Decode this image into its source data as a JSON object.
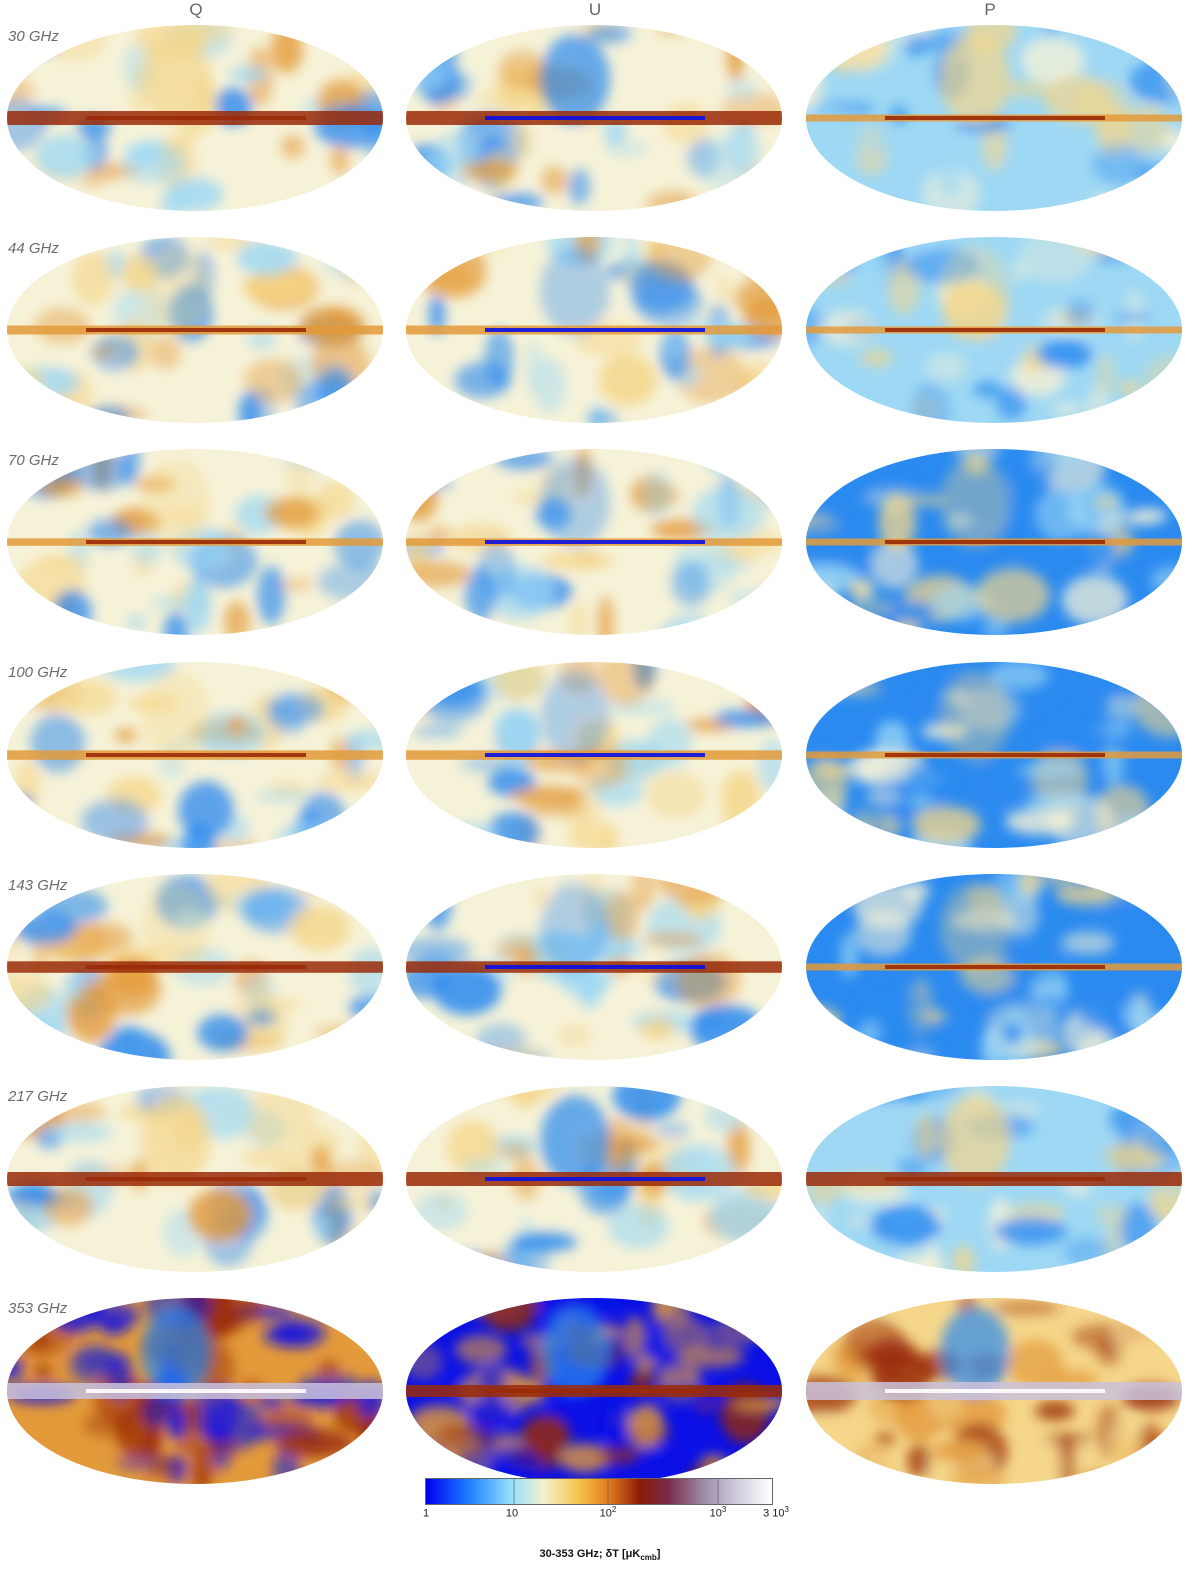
{
  "columns": [
    "Q",
    "U",
    "P"
  ],
  "rows": [
    {
      "freq": "30 GHz"
    },
    {
      "freq": "44 GHz"
    },
    {
      "freq": "70 GHz"
    },
    {
      "freq": "100 GHz"
    },
    {
      "freq": "143 GHz"
    },
    {
      "freq": "217 GHz"
    },
    {
      "freq": "353 GHz"
    }
  ],
  "colorbar": {
    "ticks": [
      {
        "base": "1",
        "exp": ""
      },
      {
        "base": "10",
        "exp": ""
      },
      {
        "base": "10",
        "exp": "2"
      },
      {
        "base": "10",
        "exp": "3"
      },
      {
        "base": "3 10",
        "exp": "3"
      }
    ],
    "title": "30-353 GHz; δT [μK",
    "title_sub": "cmb",
    "title_end": "]",
    "colors": [
      "#0000ee",
      "#1a7bff",
      "#8fdcff",
      "#f4f1d0",
      "#f7c44e",
      "#e07a1c",
      "#8a1a08",
      "#7a2a4a",
      "#9a8aa6",
      "#d2cce0",
      "#ffffff"
    ]
  },
  "palette": {
    "blue_deep": "#0a10e6",
    "blue": "#2a8af0",
    "blue_light": "#9ed8f4",
    "cream": "#f6f2d8",
    "yellow": "#f5d68a",
    "orange": "#e39a3a",
    "dark_red": "#9a2a08",
    "lavender": "#c9c2dc"
  }
}
